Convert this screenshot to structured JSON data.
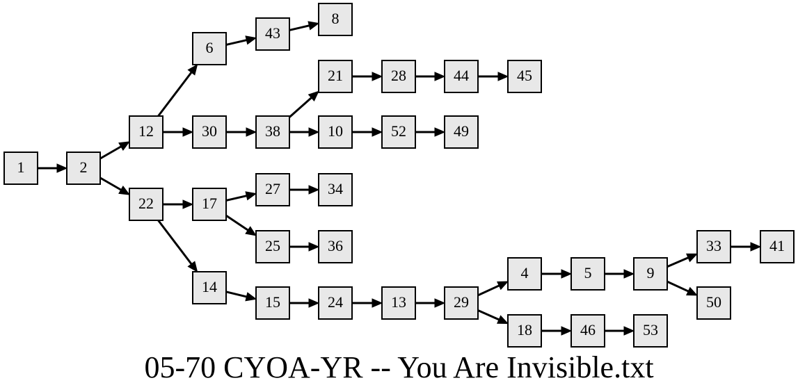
{
  "caption": "05-70 CYOA-YR -- You Are Invisible.txt",
  "colors": {
    "node_fill": "#e8e8e8",
    "stroke": "#000000",
    "background": "#ffffff"
  },
  "nodes": [
    "1",
    "2",
    "12",
    "22",
    "6",
    "30",
    "17",
    "14",
    "43",
    "38",
    "27",
    "25",
    "15",
    "8",
    "21",
    "10",
    "34",
    "36",
    "24",
    "28",
    "52",
    "13",
    "44",
    "49",
    "29",
    "45",
    "4",
    "18",
    "5",
    "46",
    "9",
    "53",
    "33",
    "50",
    "41"
  ],
  "edges": [
    [
      "1",
      "2"
    ],
    [
      "2",
      "12"
    ],
    [
      "2",
      "22"
    ],
    [
      "12",
      "6"
    ],
    [
      "12",
      "30"
    ],
    [
      "6",
      "43"
    ],
    [
      "43",
      "8"
    ],
    [
      "30",
      "38"
    ],
    [
      "38",
      "21"
    ],
    [
      "38",
      "10"
    ],
    [
      "21",
      "28"
    ],
    [
      "28",
      "44"
    ],
    [
      "44",
      "45"
    ],
    [
      "10",
      "52"
    ],
    [
      "52",
      "49"
    ],
    [
      "22",
      "17"
    ],
    [
      "22",
      "14"
    ],
    [
      "17",
      "27"
    ],
    [
      "17",
      "25"
    ],
    [
      "27",
      "34"
    ],
    [
      "25",
      "36"
    ],
    [
      "14",
      "15"
    ],
    [
      "15",
      "24"
    ],
    [
      "24",
      "13"
    ],
    [
      "13",
      "29"
    ],
    [
      "29",
      "4"
    ],
    [
      "29",
      "18"
    ],
    [
      "4",
      "5"
    ],
    [
      "5",
      "9"
    ],
    [
      "9",
      "33"
    ],
    [
      "9",
      "50"
    ],
    [
      "33",
      "41"
    ],
    [
      "18",
      "46"
    ],
    [
      "46",
      "53"
    ]
  ]
}
